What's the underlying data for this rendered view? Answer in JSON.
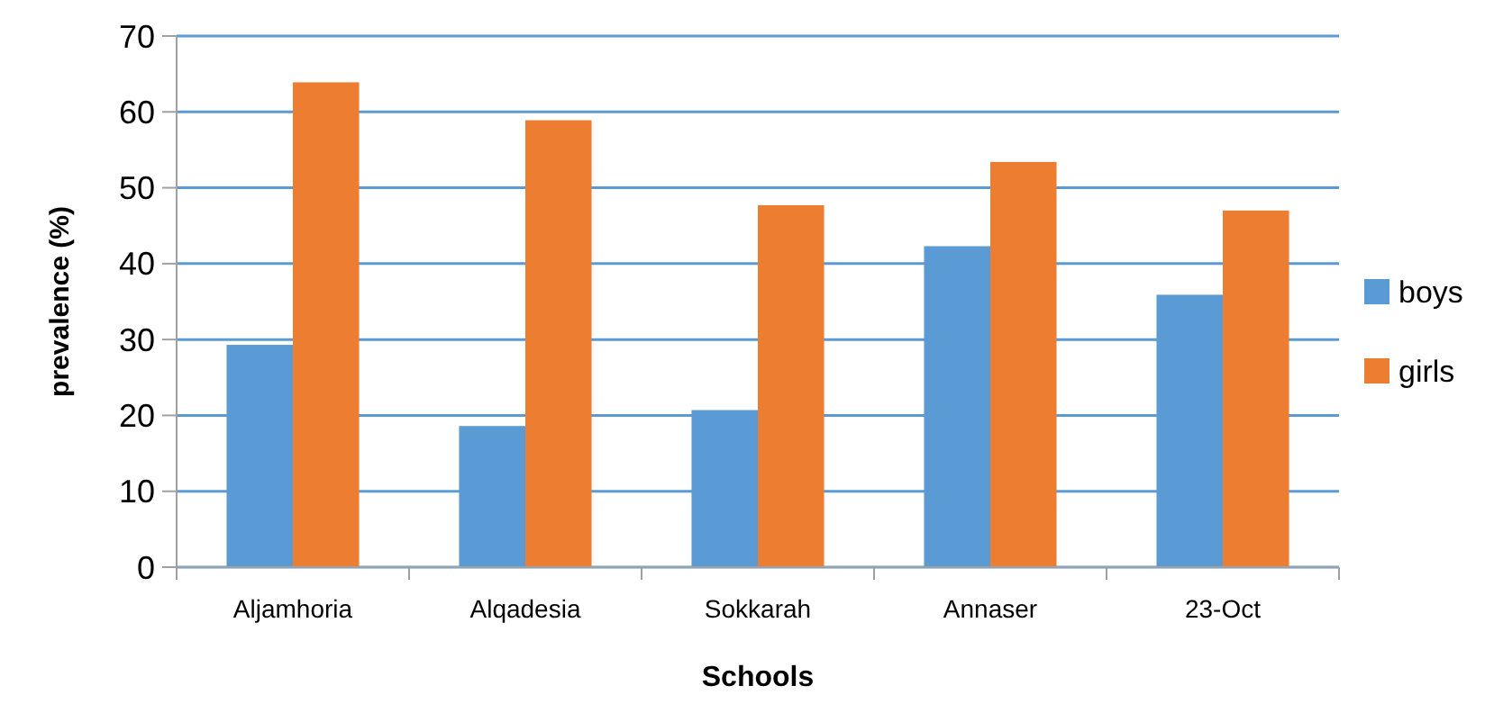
{
  "chart_data": {
    "type": "bar",
    "xlabel": "Schools",
    "ylabel": "prevalence (%)",
    "categories": [
      "Aljamhoria",
      "Alqadesia",
      "Sokkarah",
      "Annaser",
      "23-Oct"
    ],
    "series": [
      {
        "name": "boys",
        "color": "#5b9bd5",
        "values": [
          29.3,
          18.6,
          20.7,
          42.3,
          35.9
        ]
      },
      {
        "name": "girls",
        "color": "#ed7d31",
        "values": [
          63.9,
          58.9,
          47.7,
          53.4,
          47.0
        ]
      }
    ],
    "ylim": [
      0,
      70
    ],
    "yticks": [
      0,
      10,
      20,
      30,
      40,
      50,
      60,
      70
    ],
    "grid": "y",
    "legend": "right"
  }
}
